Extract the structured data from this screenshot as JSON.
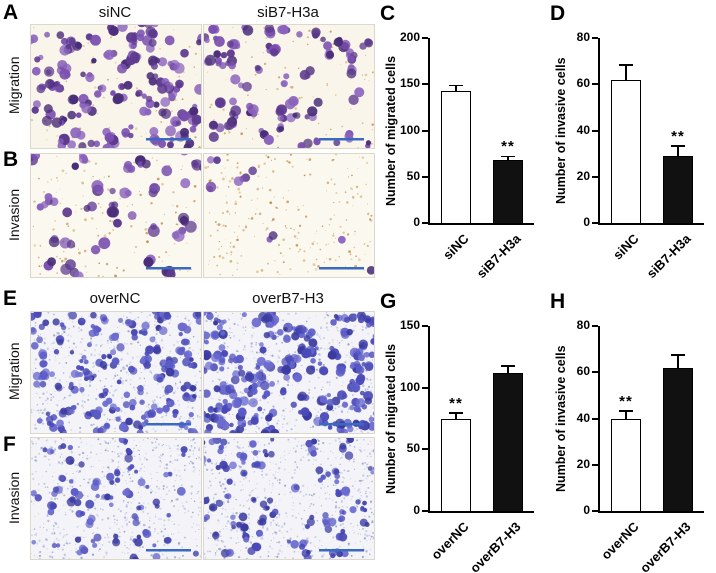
{
  "figure_labels": {
    "panel_a": "A",
    "panel_b": "B",
    "panel_e": "E",
    "panel_f": "F"
  },
  "image_panels": {
    "top": {
      "col1": "siNC",
      "col2": "siB7-H3a",
      "row1": "Migration",
      "row2": "Invasion"
    },
    "bottom": {
      "col1": "overNC",
      "col2": "overB7-H3",
      "row1": "Migration",
      "row2": "Invasion"
    }
  },
  "scale_bar_color": "#3a6abf",
  "chart_data": [
    {
      "letter": "C",
      "type": "bar",
      "title": "",
      "xlabel": "",
      "ylabel": "Number of migrated cells",
      "categories": [
        "siNC",
        "siB7-H3a"
      ],
      "values": [
        143,
        68
      ],
      "errors": [
        5,
        3
      ],
      "ylim": [
        0,
        200
      ],
      "yticks": [
        0,
        50,
        100,
        150,
        200
      ],
      "bar_colors": [
        "#ffffff",
        "#111111"
      ],
      "significance": [
        null,
        "**"
      ],
      "grid": false,
      "legend": "none"
    },
    {
      "letter": "D",
      "type": "bar",
      "title": "",
      "xlabel": "",
      "ylabel": "Number of invasive cells",
      "categories": [
        "siNC",
        "siB7-H3a"
      ],
      "values": [
        62,
        29
      ],
      "errors": [
        6,
        4
      ],
      "ylim": [
        0,
        80
      ],
      "yticks": [
        0,
        20,
        40,
        60,
        80
      ],
      "bar_colors": [
        "#ffffff",
        "#111111"
      ],
      "significance": [
        null,
        "**"
      ],
      "grid": false,
      "legend": "none"
    },
    {
      "letter": "G",
      "type": "bar",
      "title": "",
      "xlabel": "",
      "ylabel": "Number of migrated cells",
      "categories": [
        "overNC",
        "overB7-H3"
      ],
      "values": [
        75,
        112
      ],
      "errors": [
        4,
        5
      ],
      "ylim": [
        0,
        150
      ],
      "yticks": [
        0,
        50,
        100,
        150
      ],
      "bar_colors": [
        "#ffffff",
        "#111111"
      ],
      "significance": [
        "**",
        null
      ],
      "grid": false,
      "legend": "none"
    },
    {
      "letter": "H",
      "type": "bar",
      "title": "",
      "xlabel": "",
      "ylabel": "Number of invasive cells",
      "categories": [
        "overNC",
        "overB7-H3"
      ],
      "values": [
        40,
        62
      ],
      "errors": [
        3,
        5
      ],
      "ylim": [
        0,
        80
      ],
      "yticks": [
        0,
        20,
        40,
        60,
        80
      ],
      "bar_colors": [
        "#ffffff",
        "#111111"
      ],
      "significance": [
        "**",
        null
      ],
      "grid": false,
      "legend": "none"
    }
  ]
}
